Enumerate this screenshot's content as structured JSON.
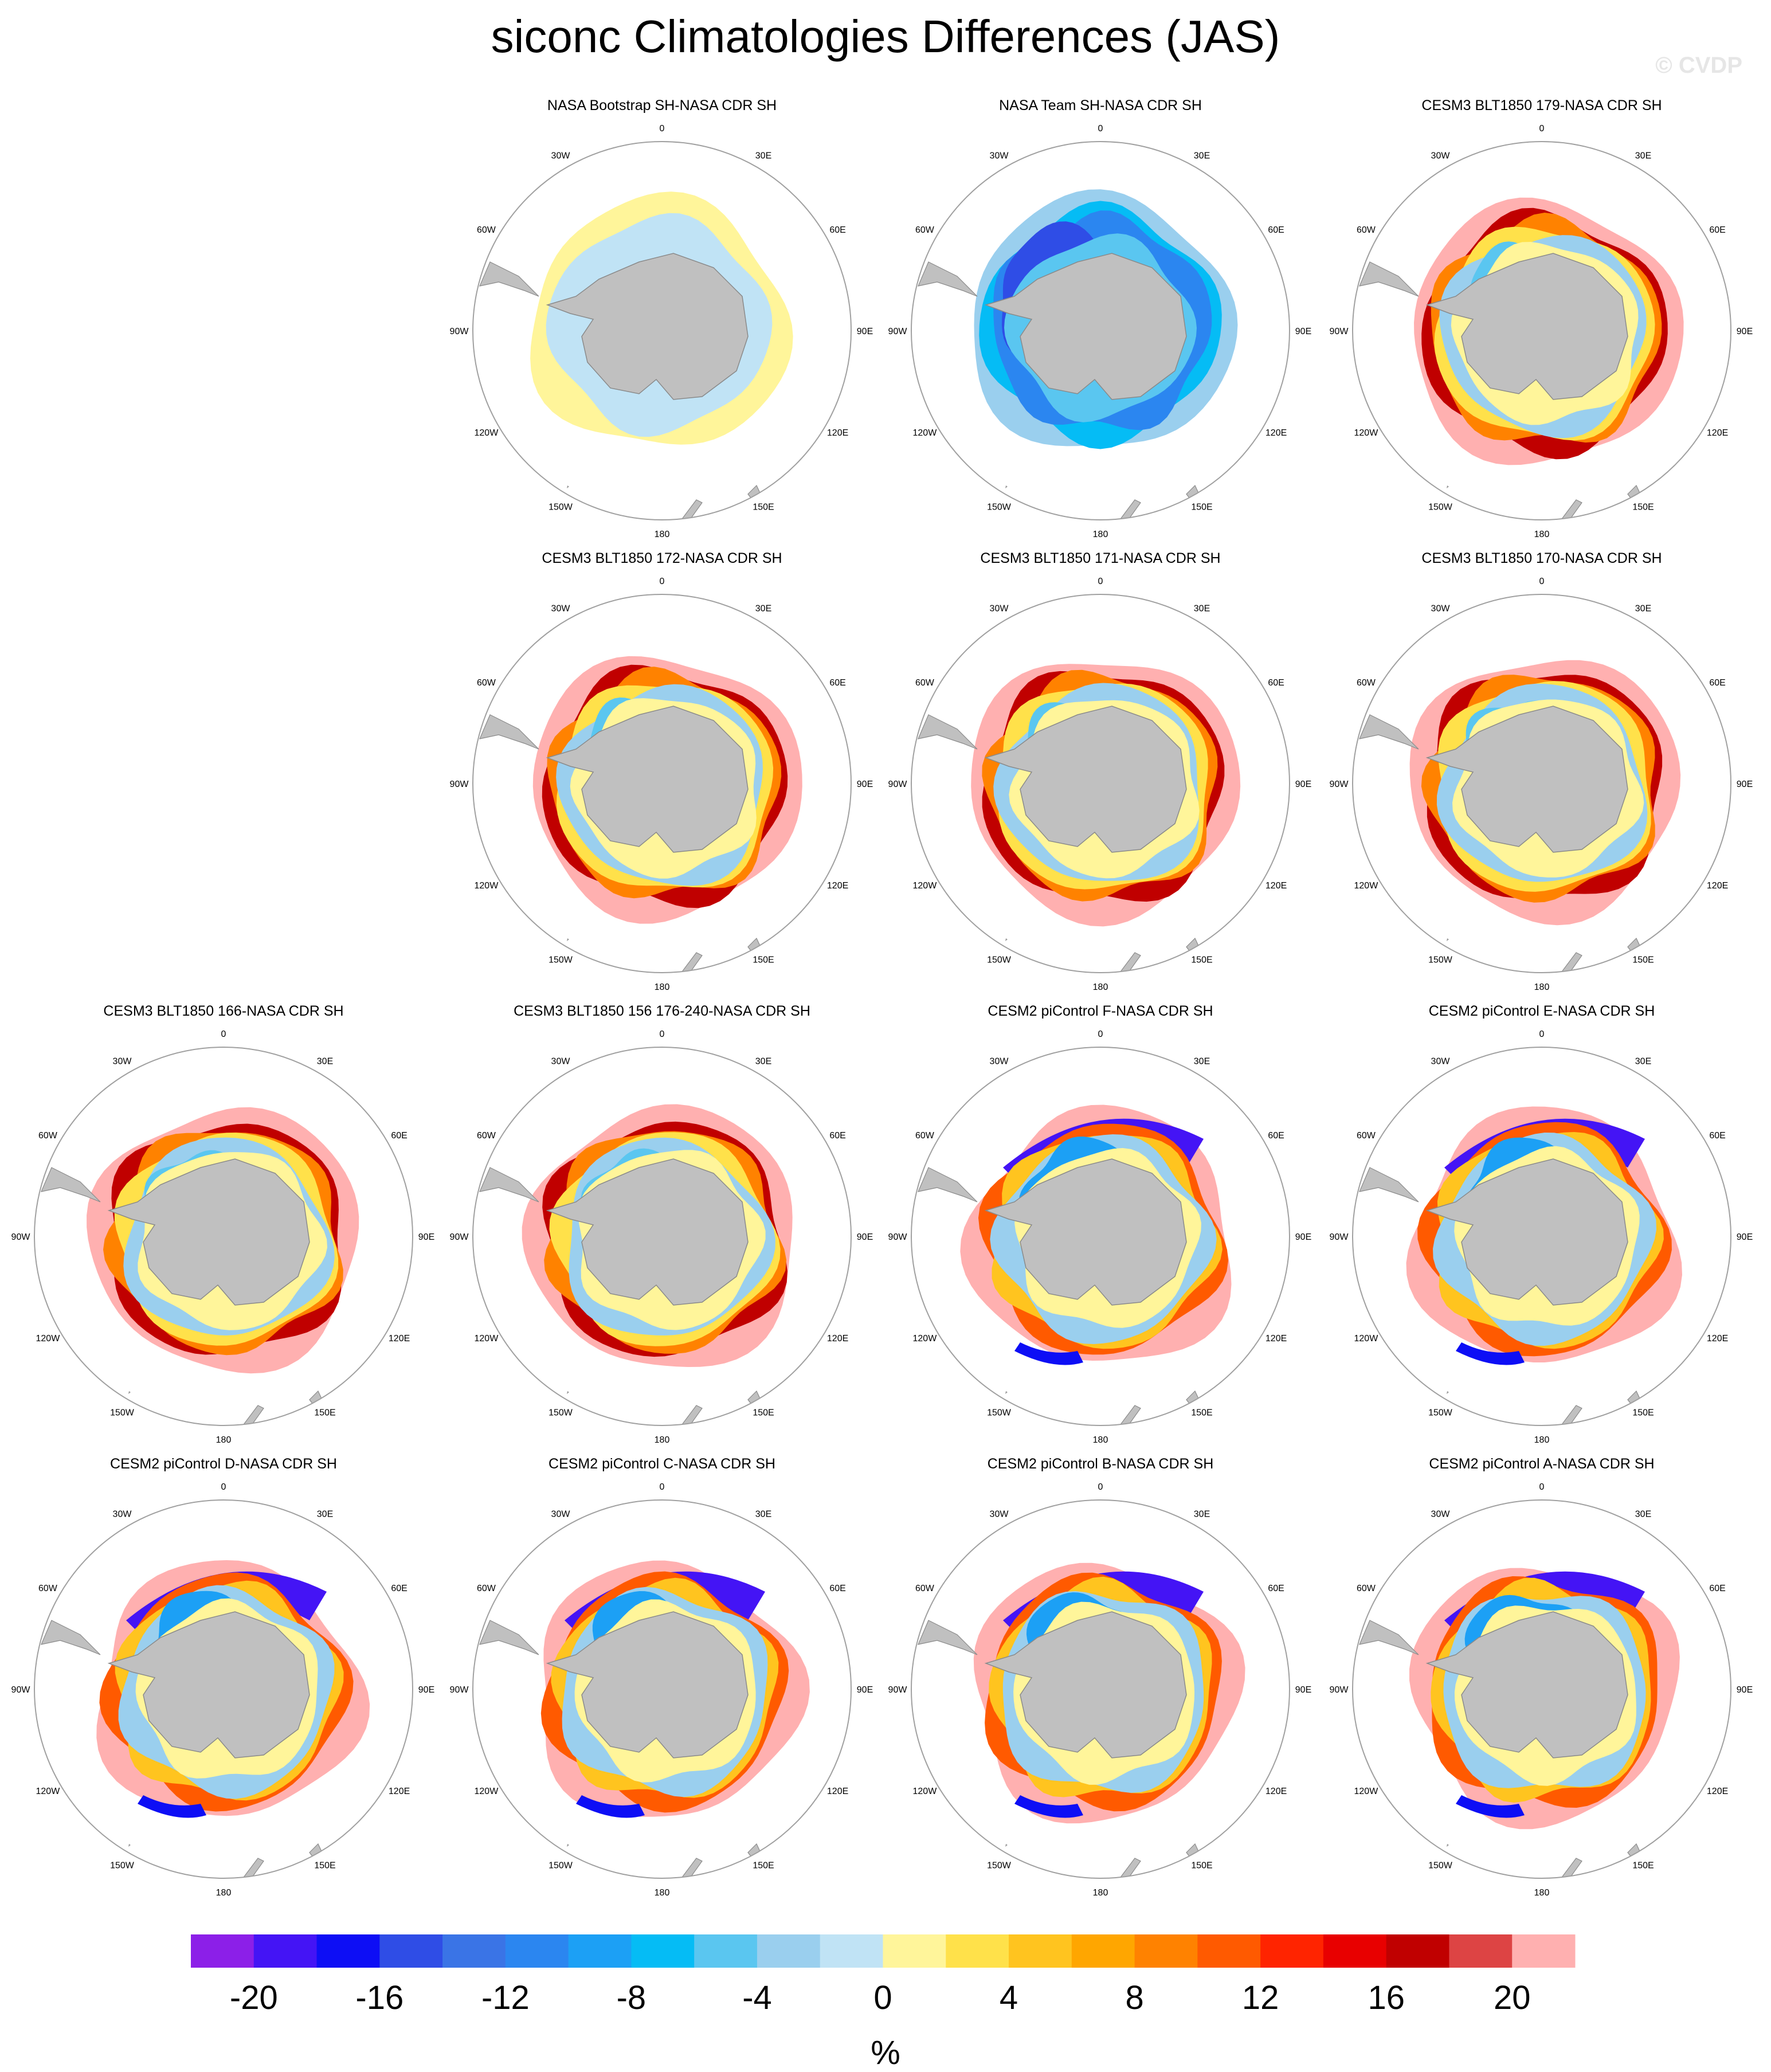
{
  "title": "siconc Climatologies Differences (JAS)",
  "watermark": "© CVDP",
  "longitude_labels": [
    "0",
    "30E",
    "60E",
    "90E",
    "120E",
    "150E",
    "180",
    "150W",
    "120W",
    "90W",
    "60W",
    "30W"
  ],
  "panels": [
    {
      "title": "NASA Bootstrap SH-NASA CDR SH",
      "pattern": "bootstrap"
    },
    {
      "title": "NASA Team SH-NASA CDR SH",
      "pattern": "team"
    },
    {
      "title": "CESM3 BLT1850 179-NASA CDR SH",
      "pattern": "cesm3"
    },
    {
      "title": "CESM3 BLT1850 172-NASA CDR SH",
      "pattern": "cesm3"
    },
    {
      "title": "CESM3 BLT1850 171-NASA CDR SH",
      "pattern": "cesm3"
    },
    {
      "title": "CESM3 BLT1850 170-NASA CDR SH",
      "pattern": "cesm3"
    },
    {
      "title": "CESM3 BLT1850 166-NASA CDR SH",
      "pattern": "cesm3"
    },
    {
      "title": "CESM3 BLT1850 156 176-240-NASA CDR SH",
      "pattern": "cesm3"
    },
    {
      "title": "CESM2 piControl F-NASA CDR SH",
      "pattern": "cesm2"
    },
    {
      "title": "CESM2 piControl E-NASA CDR SH",
      "pattern": "cesm2"
    },
    {
      "title": "CESM2 piControl D-NASA CDR SH",
      "pattern": "cesm2"
    },
    {
      "title": "CESM2 piControl C-NASA CDR SH",
      "pattern": "cesm2"
    },
    {
      "title": "CESM2 piControl B-NASA CDR SH",
      "pattern": "cesm2"
    },
    {
      "title": "CESM2 piControl A-NASA CDR SH",
      "pattern": "cesm2"
    }
  ],
  "colorbar": {
    "unit": "%",
    "min": -22,
    "max": 22,
    "step": 2,
    "tick_labels": [
      "-20",
      "-16",
      "-12",
      "-8",
      "-4",
      "0",
      "4",
      "8",
      "12",
      "16",
      "20"
    ],
    "colors": [
      "#8c1fe8",
      "#4414f5",
      "#0d0ef5",
      "#2f4de6",
      "#3a74e6",
      "#2b86f0",
      "#1ca0f5",
      "#05bcf5",
      "#5ac6f0",
      "#9acfee",
      "#c0e3f5",
      "#fff59a",
      "#ffe14a",
      "#ffc41f",
      "#ffa600",
      "#ff8200",
      "#ff5a00",
      "#ff2400",
      "#e80000",
      "#c00000",
      "#dd4444",
      "#ffb0b0"
    ]
  }
}
